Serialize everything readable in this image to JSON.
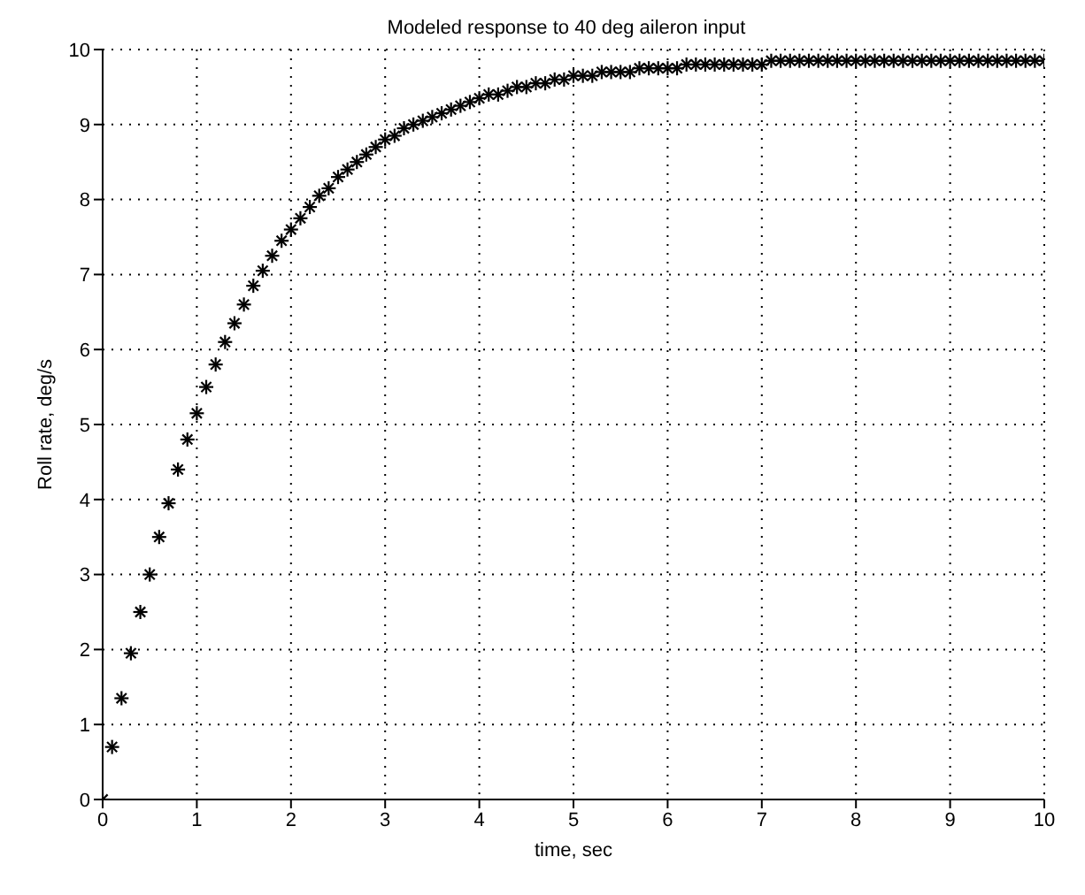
{
  "chart_data": {
    "type": "scatter",
    "title": "Modeled response to 40 deg aileron input",
    "xlabel": "time, sec",
    "ylabel": "Roll rate, deg/s",
    "x": [
      0,
      0.1,
      0.2,
      0.3,
      0.4,
      0.5,
      0.6,
      0.7,
      0.8,
      0.9,
      1,
      1.1,
      1.2,
      1.3,
      1.4,
      1.5,
      1.6,
      1.7,
      1.8,
      1.9,
      2,
      2.1,
      2.2,
      2.3,
      2.4,
      2.5,
      2.6,
      2.7,
      2.8,
      2.9,
      3,
      3.1,
      3.2,
      3.3,
      3.4,
      3.5,
      3.6,
      3.7,
      3.8,
      3.9,
      4,
      4.1,
      4.2,
      4.3,
      4.4,
      4.5,
      4.6,
      4.7,
      4.8,
      4.9,
      5,
      5.1,
      5.2,
      5.3,
      5.4,
      5.5,
      5.6,
      5.7,
      5.8,
      5.9,
      6,
      6.1,
      6.2,
      6.3,
      6.4,
      6.5,
      6.6,
      6.7,
      6.8,
      6.9,
      7,
      7.1,
      7.2,
      7.3,
      7.4,
      7.5,
      7.6,
      7.7,
      7.8,
      7.9,
      8,
      8.1,
      8.2,
      8.3,
      8.4,
      8.5,
      8.6,
      8.7,
      8.8,
      8.9,
      9,
      9.1,
      9.2,
      9.3,
      9.4,
      9.5,
      9.6,
      9.7,
      9.8,
      9.9,
      10
    ],
    "series": [
      {
        "color": "#000000",
        "values": [
          0,
          0.7,
          1.35,
          1.95,
          2.5,
          3.0,
          3.5,
          3.95,
          4.4,
          4.8,
          5.15,
          5.5,
          5.8,
          6.1,
          6.35,
          6.6,
          6.85,
          7.05,
          7.25,
          7.45,
          7.6,
          7.75,
          7.9,
          8.05,
          8.15,
          8.3,
          8.4,
          8.5,
          8.6,
          8.7,
          8.8,
          8.85,
          8.95,
          9.0,
          9.05,
          9.1,
          9.15,
          9.2,
          9.25,
          9.3,
          9.35,
          9.4,
          9.4,
          9.45,
          9.5,
          9.5,
          9.55,
          9.55,
          9.6,
          9.6,
          9.65,
          9.65,
          9.65,
          9.7,
          9.7,
          9.7,
          9.7,
          9.75,
          9.75,
          9.75,
          9.75,
          9.75,
          9.8,
          9.8,
          9.8,
          9.8,
          9.8,
          9.8,
          9.8,
          9.8,
          9.8,
          9.85,
          9.85,
          9.85,
          9.85,
          9.85,
          9.85,
          9.85,
          9.85,
          9.85,
          9.85,
          9.85,
          9.85,
          9.85,
          9.85,
          9.85,
          9.85,
          9.85,
          9.85,
          9.85,
          9.85,
          9.85,
          9.85,
          9.85,
          9.85,
          9.85,
          9.85,
          9.85,
          9.85,
          9.85,
          9.85
        ]
      }
    ],
    "xlim": [
      0,
      10
    ],
    "xticks": [
      0,
      1,
      2,
      3,
      4,
      5,
      6,
      7,
      8,
      9,
      10
    ],
    "ylim": [
      0,
      10
    ],
    "yticks": [
      0,
      1,
      2,
      3,
      4,
      5,
      6,
      7,
      8,
      9,
      10
    ],
    "grid": true,
    "marker": "cross",
    "legend": false
  }
}
